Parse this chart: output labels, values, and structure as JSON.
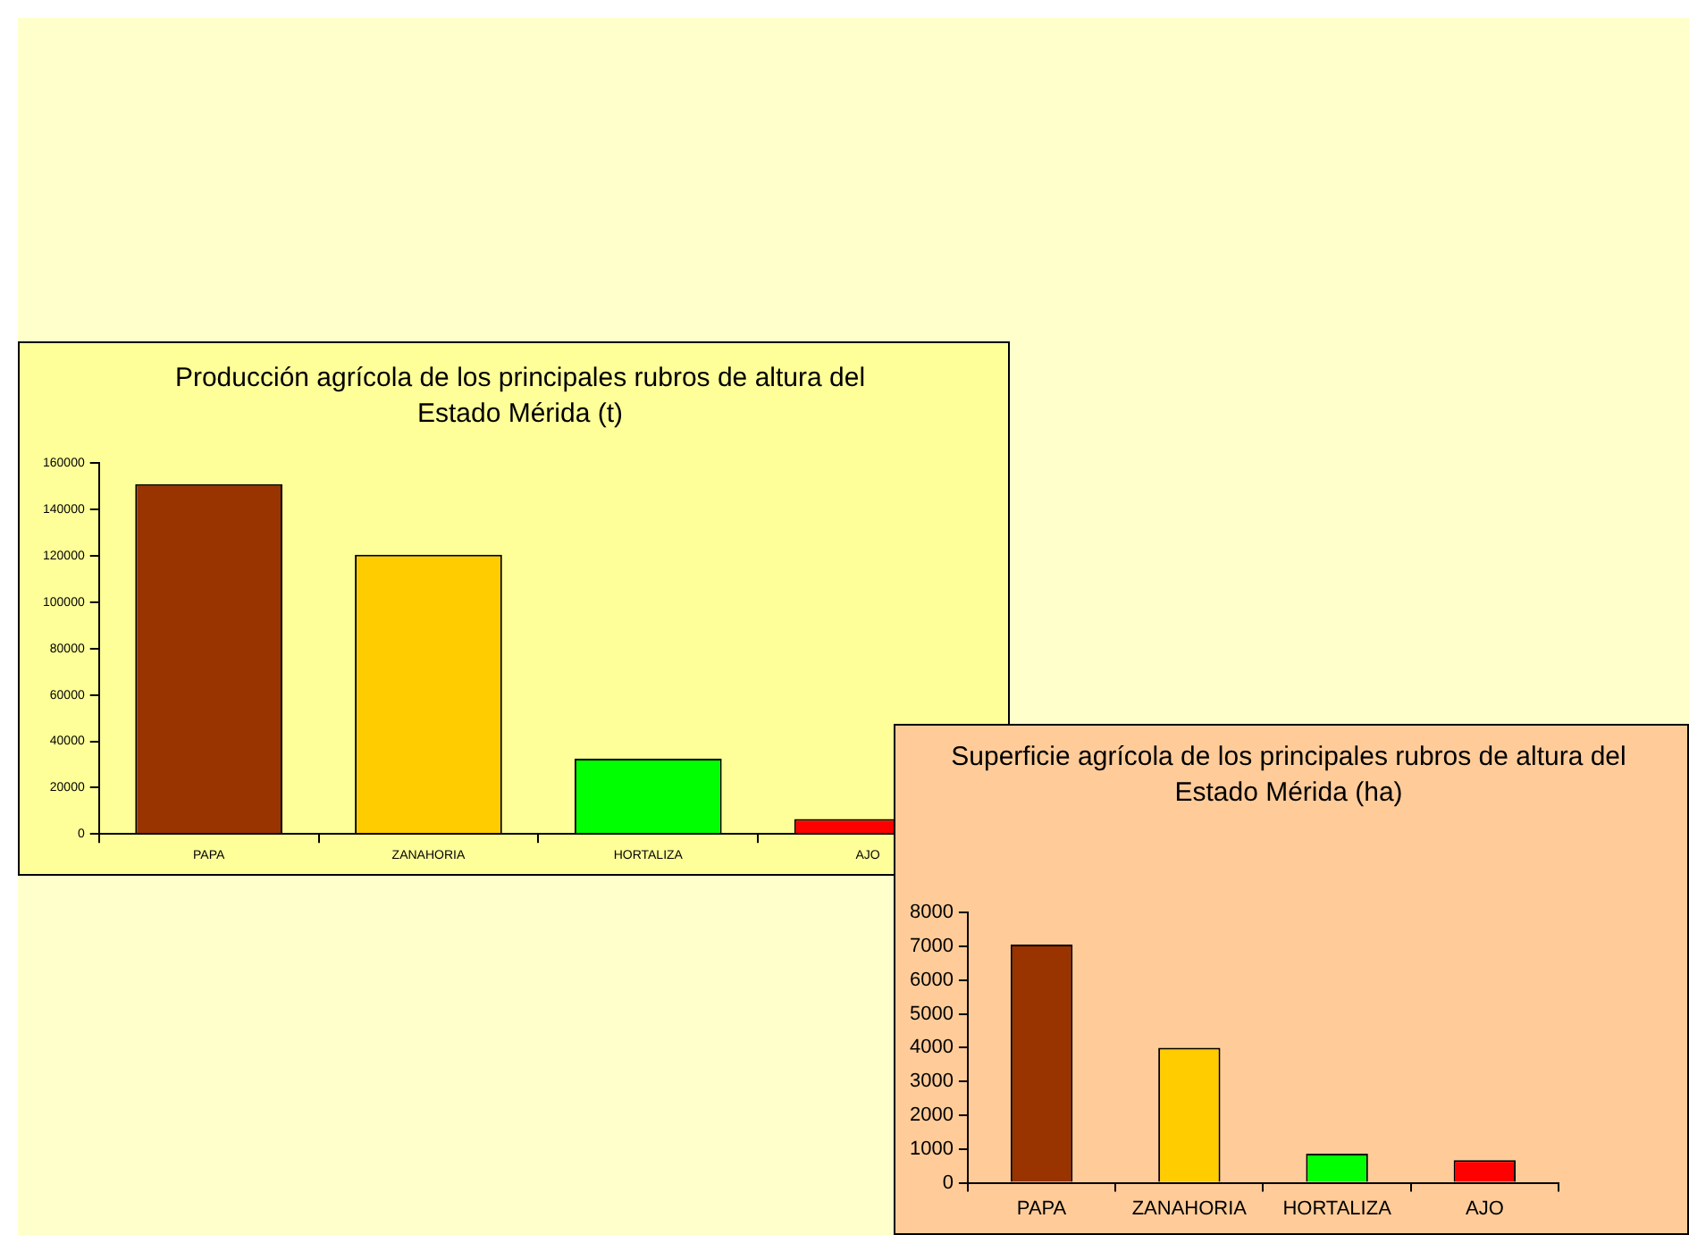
{
  "chart_data": [
    {
      "type": "bar",
      "title": "Producción agrícola de los principales rubros de altura del Estado Mérida (t)",
      "categories": [
        "PAPA",
        "ZANAHORIA",
        "HORTALIZA",
        "AJO"
      ],
      "values": [
        151000,
        120500,
        32500,
        6400
      ],
      "colors": [
        "#993300",
        "#ffcc00",
        "#00ff00",
        "#ff0000"
      ],
      "ylim": [
        0,
        160000
      ],
      "yticks": [
        0,
        20000,
        40000,
        60000,
        80000,
        100000,
        120000,
        140000,
        160000
      ],
      "grid": false,
      "legend": false
    },
    {
      "type": "bar",
      "title": "Superficie agrícola de los principales rubros de altura del Estado Mérida (ha)",
      "categories": [
        "PAPA",
        "ZANAHORIA",
        "HORTALIZA",
        "AJO"
      ],
      "values": [
        7050,
        4000,
        860,
        670
      ],
      "colors": [
        "#993300",
        "#ffcc00",
        "#00ff00",
        "#ff0000"
      ],
      "ylim": [
        0,
        8000
      ],
      "yticks": [
        0,
        1000,
        2000,
        3000,
        4000,
        5000,
        6000,
        7000,
        8000
      ],
      "grid": false,
      "legend": false
    }
  ]
}
